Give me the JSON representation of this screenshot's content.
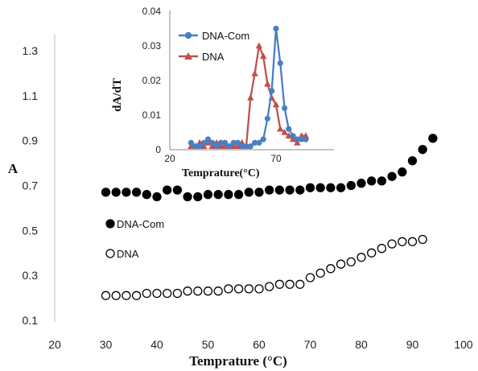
{
  "chart_data": [
    {
      "type": "scatter",
      "xlabel": "Temprature (°C)",
      "ylabel": "A",
      "xlim": [
        20,
        100
      ],
      "ylim": [
        0.1,
        1.4
      ],
      "xticks": [
        "20",
        "30",
        "40",
        "50",
        "60",
        "70",
        "80",
        "90",
        "100"
      ],
      "yticks": [
        "0.1",
        "0.3",
        "0.5",
        "0.7",
        "0.9",
        "1.1",
        "1.3"
      ],
      "legend_placement": "left-middle",
      "series": [
        {
          "name": "DNA-Com",
          "marker": "filled-circle",
          "color": "#000000",
          "x": [
            30,
            32,
            34,
            36,
            38,
            40,
            42,
            44,
            46,
            48,
            50,
            52,
            54,
            56,
            58,
            60,
            62,
            64,
            66,
            68,
            70,
            72,
            74,
            76,
            78,
            80,
            82,
            84,
            86,
            88,
            90,
            92,
            94
          ],
          "y": [
            0.67,
            0.67,
            0.67,
            0.67,
            0.66,
            0.65,
            0.68,
            0.68,
            0.65,
            0.65,
            0.66,
            0.66,
            0.66,
            0.66,
            0.67,
            0.67,
            0.68,
            0.68,
            0.68,
            0.68,
            0.69,
            0.69,
            0.69,
            0.69,
            0.7,
            0.71,
            0.72,
            0.72,
            0.74,
            0.76,
            0.81,
            0.86,
            0.91
          ]
        },
        {
          "name": "DNA",
          "marker": "open-circle",
          "color": "#000000",
          "x": [
            30,
            32,
            34,
            36,
            38,
            40,
            42,
            44,
            46,
            48,
            50,
            52,
            54,
            56,
            58,
            60,
            62,
            64,
            66,
            68,
            70,
            72,
            74,
            76,
            78,
            80,
            82,
            84,
            86,
            88,
            90,
            92
          ],
          "y": [
            0.21,
            0.21,
            0.21,
            0.21,
            0.22,
            0.22,
            0.22,
            0.22,
            0.23,
            0.23,
            0.23,
            0.23,
            0.24,
            0.24,
            0.24,
            0.24,
            0.25,
            0.26,
            0.26,
            0.26,
            0.29,
            0.31,
            0.33,
            0.35,
            0.36,
            0.38,
            0.4,
            0.42,
            0.44,
            0.45,
            0.45,
            0.46
          ]
        }
      ]
    },
    {
      "type": "line",
      "xlabel": "Temprature(°C)",
      "ylabel": "dA/dT",
      "xlim": [
        10,
        90
      ],
      "ylim": [
        0,
        0.04
      ],
      "xticks": [
        "20",
        "70"
      ],
      "yticks": [
        "0",
        "0.01",
        "0.02",
        "0.03",
        "0.04"
      ],
      "legend_placement": "top-left",
      "series": [
        {
          "name": "DNA-Com",
          "marker": "circle",
          "color": "#4a7fc1",
          "x": [
            30,
            32,
            34,
            36,
            38,
            40,
            42,
            44,
            46,
            48,
            50,
            52,
            54,
            56,
            58,
            60,
            62,
            64,
            66,
            68,
            70,
            72,
            74,
            76,
            78,
            80,
            82,
            84
          ],
          "y": [
            0.002,
            0.001,
            0.001,
            0.002,
            0.003,
            0.002,
            0.001,
            0.002,
            0.002,
            0.001,
            0.002,
            0.002,
            0.001,
            0.001,
            0.001,
            0.002,
            0.002,
            0.003,
            0.009,
            0.017,
            0.035,
            0.025,
            0.012,
            0.006,
            0.004,
            0.003,
            0.003,
            0.003
          ]
        },
        {
          "name": "DNA",
          "marker": "triangle",
          "color": "#c0504d",
          "x": [
            30,
            32,
            34,
            36,
            38,
            40,
            42,
            44,
            46,
            48,
            50,
            52,
            54,
            56,
            58,
            60,
            62,
            64,
            66,
            68,
            70,
            72,
            74,
            76,
            78,
            80,
            82,
            84
          ],
          "y": [
            0.001,
            0.001,
            0.002,
            0.001,
            0.002,
            0.001,
            0.002,
            0.001,
            0.001,
            0.001,
            0.001,
            0.001,
            0.002,
            0.001,
            0.015,
            0.022,
            0.03,
            0.027,
            0.019,
            0.015,
            0.013,
            0.006,
            0.005,
            0.004,
            0.003,
            0.002,
            0.004,
            0.004
          ]
        }
      ]
    }
  ]
}
